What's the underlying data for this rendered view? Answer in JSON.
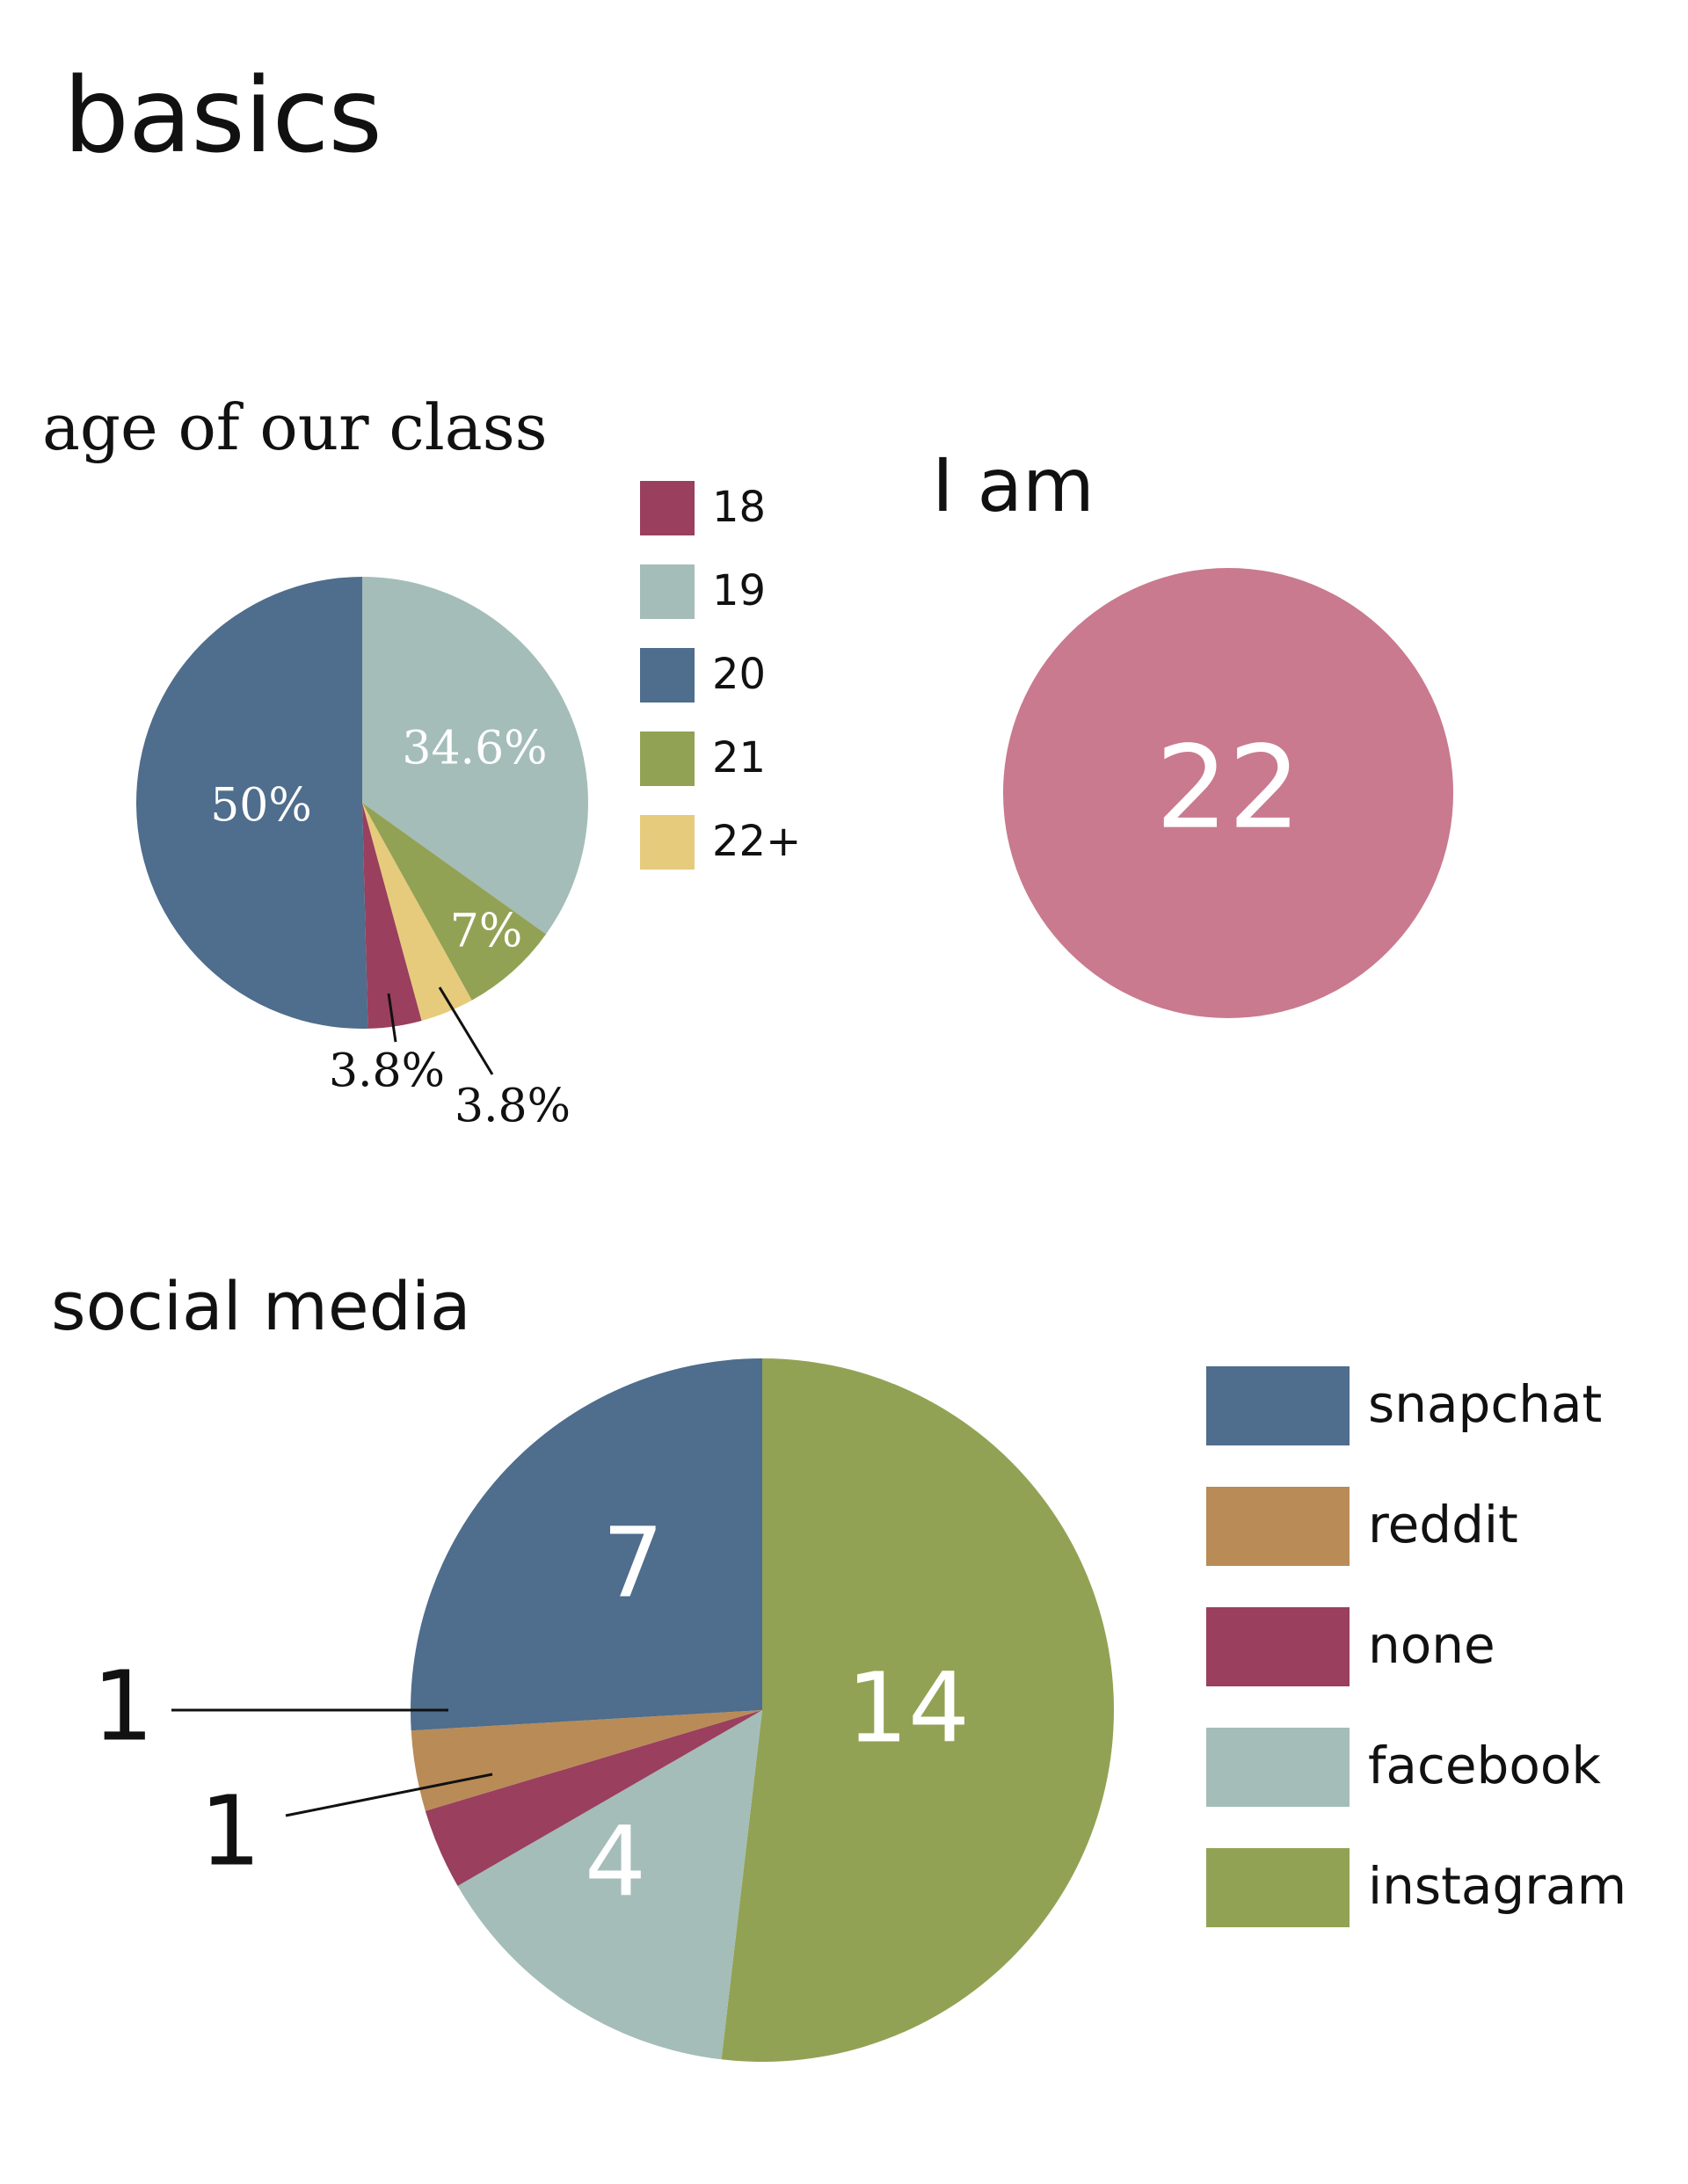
{
  "page": {
    "title": "basics"
  },
  "chart_data": [
    {
      "type": "pie",
      "title": "age of our class",
      "categories": [
        "18",
        "19",
        "20",
        "21",
        "22+"
      ],
      "values": [
        3.8,
        34.6,
        50,
        7,
        3.8
      ],
      "labels": [
        "3.8%",
        "34.6%",
        "50%",
        "7%",
        "3.8%"
      ],
      "colors": [
        "#9a3f5e",
        "#a4bdb8",
        "#4f6d8c",
        "#92a254",
        "#e6cb7c"
      ],
      "slice_order": [
        "19",
        "21",
        "22+",
        "18",
        "20"
      ],
      "legend": "right"
    },
    {
      "type": "pie",
      "title": "I am",
      "categories": [
        "22"
      ],
      "values": [
        1
      ],
      "labels": [
        "22"
      ],
      "colors": [
        "#c97a8f"
      ]
    },
    {
      "type": "pie",
      "title": "social media",
      "categories": [
        "snapchat",
        "reddit",
        "none",
        "facebook",
        "instagram"
      ],
      "values": [
        7,
        1,
        1,
        4,
        14
      ],
      "labels": [
        "7",
        "1",
        "1",
        "4",
        "14"
      ],
      "colors": [
        "#4f6d8c",
        "#b98b57",
        "#9a3f5e",
        "#a4bdb8",
        "#92a254"
      ],
      "slice_order": [
        "instagram",
        "facebook",
        "none",
        "reddit",
        "snapchat"
      ],
      "legend": "right"
    }
  ]
}
